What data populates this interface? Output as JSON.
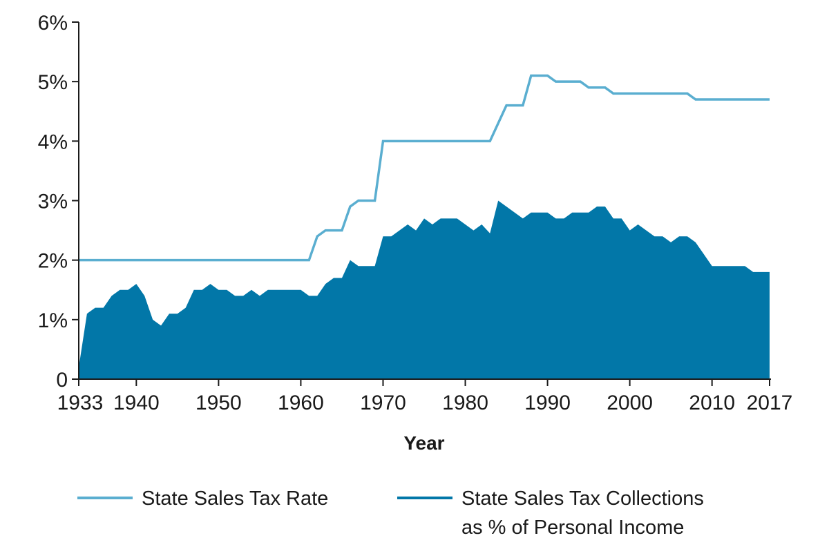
{
  "chart_data": {
    "type": "area",
    "xlabel": "Year",
    "ylabel": "",
    "xlim": [
      1933,
      2017
    ],
    "ylim": [
      0,
      6
    ],
    "x_ticks": [
      1933,
      1940,
      1950,
      1960,
      1970,
      1980,
      1990,
      2000,
      2010,
      2017
    ],
    "x_tick_labels": [
      "1933",
      "1940",
      "1950",
      "1960",
      "1970",
      "1980",
      "1990",
      "2000",
      "2010",
      "2017"
    ],
    "y_ticks": [
      0,
      1,
      2,
      3,
      4,
      5,
      6
    ],
    "y_tick_labels": [
      "0",
      "1%",
      "2%",
      "3%",
      "4%",
      "5%",
      "6%"
    ],
    "grid": false,
    "legend_position": "bottom",
    "series": [
      {
        "name": "State Sales Tax Rate",
        "mark": "line",
        "color": "#5aaed0",
        "points": [
          [
            1933,
            2.0
          ],
          [
            1961,
            2.0
          ],
          [
            1962,
            2.4
          ],
          [
            1963,
            2.5
          ],
          [
            1965,
            2.5
          ],
          [
            1966,
            2.9
          ],
          [
            1967,
            3.0
          ],
          [
            1969,
            3.0
          ],
          [
            1970,
            4.0
          ],
          [
            1983,
            4.0
          ],
          [
            1985,
            4.6
          ],
          [
            1987,
            4.6
          ],
          [
            1988,
            5.1
          ],
          [
            1990,
            5.1
          ],
          [
            1991,
            5.0
          ],
          [
            1994,
            5.0
          ],
          [
            1995,
            4.9
          ],
          [
            1997,
            4.9
          ],
          [
            1998,
            4.8
          ],
          [
            2007,
            4.8
          ],
          [
            2008,
            4.7
          ],
          [
            2017,
            4.7
          ]
        ]
      },
      {
        "name": "State Sales Tax Collections as % of Personal Income",
        "mark": "area",
        "color": "#0277a8",
        "points": [
          [
            1933,
            0.2
          ],
          [
            1934,
            1.1
          ],
          [
            1935,
            1.2
          ],
          [
            1936,
            1.2
          ],
          [
            1937,
            1.4
          ],
          [
            1938,
            1.5
          ],
          [
            1939,
            1.5
          ],
          [
            1940,
            1.6
          ],
          [
            1941,
            1.4
          ],
          [
            1942,
            1.0
          ],
          [
            1943,
            0.9
          ],
          [
            1944,
            1.1
          ],
          [
            1945,
            1.1
          ],
          [
            1946,
            1.2
          ],
          [
            1947,
            1.5
          ],
          [
            1948,
            1.5
          ],
          [
            1949,
            1.6
          ],
          [
            1950,
            1.5
          ],
          [
            1951,
            1.5
          ],
          [
            1952,
            1.4
          ],
          [
            1953,
            1.4
          ],
          [
            1954,
            1.5
          ],
          [
            1955,
            1.4
          ],
          [
            1956,
            1.5
          ],
          [
            1957,
            1.5
          ],
          [
            1958,
            1.5
          ],
          [
            1959,
            1.5
          ],
          [
            1960,
            1.5
          ],
          [
            1961,
            1.4
          ],
          [
            1962,
            1.4
          ],
          [
            1963,
            1.6
          ],
          [
            1964,
            1.7
          ],
          [
            1965,
            1.7
          ],
          [
            1966,
            2.0
          ],
          [
            1967,
            1.9
          ],
          [
            1968,
            1.9
          ],
          [
            1969,
            1.9
          ],
          [
            1970,
            2.4
          ],
          [
            1971,
            2.4
          ],
          [
            1972,
            2.5
          ],
          [
            1973,
            2.6
          ],
          [
            1974,
            2.5
          ],
          [
            1975,
            2.7
          ],
          [
            1976,
            2.6
          ],
          [
            1977,
            2.7
          ],
          [
            1978,
            2.7
          ],
          [
            1979,
            2.7
          ],
          [
            1980,
            2.6
          ],
          [
            1981,
            2.5
          ],
          [
            1982,
            2.6
          ],
          [
            1983,
            2.45
          ],
          [
            1984,
            3.0
          ],
          [
            1985,
            2.9
          ],
          [
            1986,
            2.8
          ],
          [
            1987,
            2.7
          ],
          [
            1988,
            2.8
          ],
          [
            1989,
            2.8
          ],
          [
            1990,
            2.8
          ],
          [
            1991,
            2.7
          ],
          [
            1992,
            2.7
          ],
          [
            1993,
            2.8
          ],
          [
            1994,
            2.8
          ],
          [
            1995,
            2.8
          ],
          [
            1996,
            2.9
          ],
          [
            1997,
            2.9
          ],
          [
            1998,
            2.7
          ],
          [
            1999,
            2.7
          ],
          [
            2000,
            2.5
          ],
          [
            2001,
            2.6
          ],
          [
            2002,
            2.5
          ],
          [
            2003,
            2.4
          ],
          [
            2004,
            2.4
          ],
          [
            2005,
            2.3
          ],
          [
            2006,
            2.4
          ],
          [
            2007,
            2.4
          ],
          [
            2008,
            2.3
          ],
          [
            2009,
            2.1
          ],
          [
            2010,
            1.9
          ],
          [
            2011,
            1.9
          ],
          [
            2012,
            1.9
          ],
          [
            2013,
            1.9
          ],
          [
            2014,
            1.9
          ],
          [
            2015,
            1.8
          ],
          [
            2016,
            1.8
          ],
          [
            2017,
            1.8
          ]
        ]
      }
    ]
  },
  "legend": {
    "rate_label": "State Sales Tax Rate",
    "collections_label_line1": "State Sales Tax Collections",
    "collections_label_line2": "as % of Personal Income"
  }
}
